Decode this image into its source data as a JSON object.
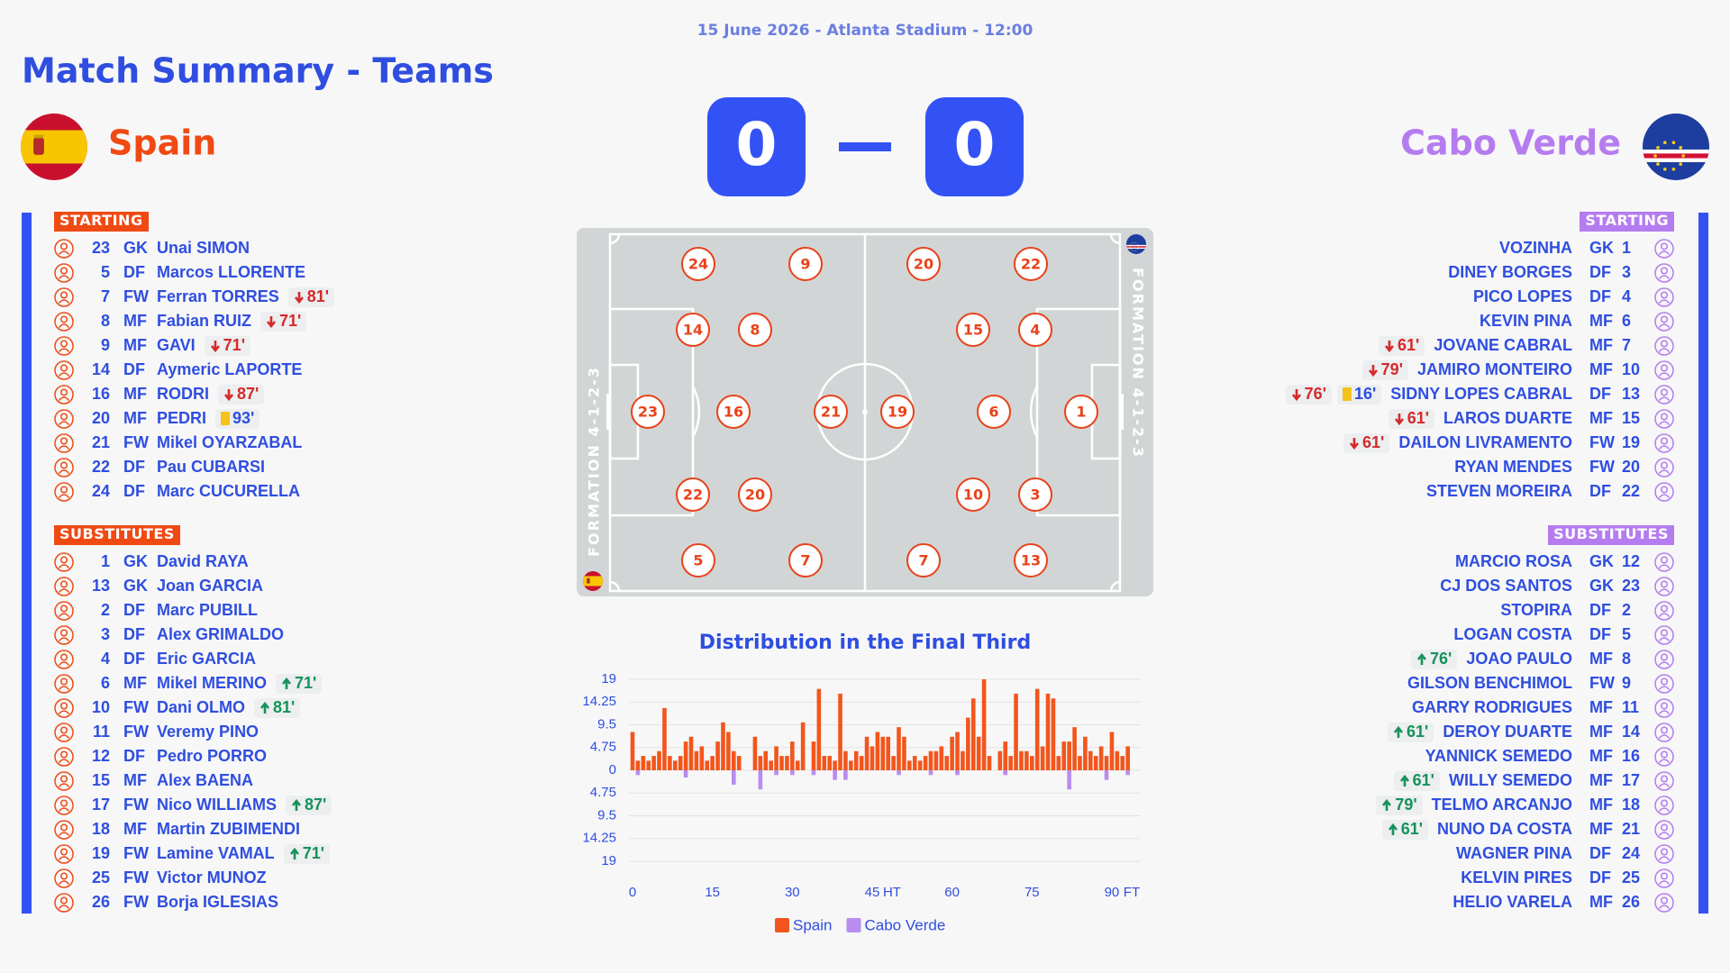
{
  "header": {
    "date_venue": "15 June 2026 - Atlanta Stadium - 12:00",
    "title": "Match Summary - Teams"
  },
  "teams": [
    {
      "name": "Spain",
      "score": 0,
      "color": "#f04a14",
      "starting_label": "STARTING",
      "substitutes_label": "SUBSTITUTES",
      "formation_label": "FORMATION 4-1-2-3",
      "pitch_numbers": [
        23,
        14,
        22,
        8,
        16,
        20,
        24,
        9,
        5,
        7,
        21
      ],
      "starting": [
        {
          "number": 23,
          "position": "GK",
          "name": "Unai SIMON"
        },
        {
          "number": 5,
          "position": "DF",
          "name": "Marcos LLORENTE"
        },
        {
          "number": 7,
          "position": "FW",
          "name": "Ferran TORRES",
          "events": [
            {
              "type": "sub_off",
              "minute": "81'"
            }
          ]
        },
        {
          "number": 8,
          "position": "MF",
          "name": "Fabian RUIZ",
          "events": [
            {
              "type": "sub_off",
              "minute": "71'"
            }
          ]
        },
        {
          "number": 9,
          "position": "MF",
          "name": "GAVI",
          "events": [
            {
              "type": "sub_off",
              "minute": "71'"
            }
          ]
        },
        {
          "number": 14,
          "position": "DF",
          "name": "Aymeric LAPORTE"
        },
        {
          "number": 16,
          "position": "MF",
          "name": "RODRI",
          "events": [
            {
              "type": "sub_off",
              "minute": "87'"
            }
          ]
        },
        {
          "number": 20,
          "position": "MF",
          "name": "PEDRI",
          "events": [
            {
              "type": "yellow_card",
              "minute": "93'"
            }
          ]
        },
        {
          "number": 21,
          "position": "FW",
          "name": "Mikel OYARZABAL"
        },
        {
          "number": 22,
          "position": "DF",
          "name": "Pau CUBARSI"
        },
        {
          "number": 24,
          "position": "DF",
          "name": "Marc CUCURELLA"
        }
      ],
      "substitutes": [
        {
          "number": 1,
          "position": "GK",
          "name": "David RAYA"
        },
        {
          "number": 13,
          "position": "GK",
          "name": "Joan GARCIA"
        },
        {
          "number": 2,
          "position": "DF",
          "name": "Marc PUBILL"
        },
        {
          "number": 3,
          "position": "DF",
          "name": "Alex GRIMALDO"
        },
        {
          "number": 4,
          "position": "DF",
          "name": "Eric GARCIA"
        },
        {
          "number": 6,
          "position": "MF",
          "name": "Mikel MERINO",
          "events": [
            {
              "type": "sub_on",
              "minute": "71'"
            }
          ]
        },
        {
          "number": 10,
          "position": "FW",
          "name": "Dani OLMO",
          "events": [
            {
              "type": "sub_on",
              "minute": "81'"
            }
          ]
        },
        {
          "number": 11,
          "position": "FW",
          "name": "Veremy PINO"
        },
        {
          "number": 12,
          "position": "DF",
          "name": "Pedro PORRO"
        },
        {
          "number": 15,
          "position": "MF",
          "name": "Alex BAENA"
        },
        {
          "number": 17,
          "position": "FW",
          "name": "Nico WILLIAMS",
          "events": [
            {
              "type": "sub_on",
              "minute": "87'"
            }
          ]
        },
        {
          "number": 18,
          "position": "MF",
          "name": "Martin ZUBIMENDI"
        },
        {
          "number": 19,
          "position": "FW",
          "name": "Lamine VAMAL",
          "events": [
            {
              "type": "sub_on",
              "minute": "71'"
            }
          ]
        },
        {
          "number": 25,
          "position": "FW",
          "name": "Victor MUNOZ"
        },
        {
          "number": 26,
          "position": "FW",
          "name": "Borja IGLESIAS"
        }
      ]
    },
    {
      "name": "Cabo Verde",
      "score": 0,
      "color": "#b57cf0",
      "starting_label": "STARTING",
      "substitutes_label": "SUBSTITUTES",
      "formation_label": "FORMATION 4-1-2-3",
      "pitch_numbers": [
        1,
        4,
        3,
        15,
        6,
        10,
        20,
        22,
        7,
        13,
        19
      ],
      "starting": [
        {
          "number": 1,
          "position": "GK",
          "name": "VOZINHA"
        },
        {
          "number": 3,
          "position": "DF",
          "name": "DINEY BORGES"
        },
        {
          "number": 4,
          "position": "DF",
          "name": "PICO LOPES"
        },
        {
          "number": 6,
          "position": "MF",
          "name": "KEVIN PINA"
        },
        {
          "number": 7,
          "position": "MF",
          "name": "JOVANE CABRAL",
          "events": [
            {
              "type": "sub_off",
              "minute": "61'"
            }
          ]
        },
        {
          "number": 10,
          "position": "MF",
          "name": "JAMIRO MONTEIRO",
          "events": [
            {
              "type": "sub_off",
              "minute": "79'"
            }
          ]
        },
        {
          "number": 13,
          "position": "DF",
          "name": "SIDNY LOPES CABRAL",
          "events": [
            {
              "type": "sub_off",
              "minute": "76'"
            },
            {
              "type": "yellow_card",
              "minute": "16'"
            }
          ]
        },
        {
          "number": 15,
          "position": "MF",
          "name": "LAROS DUARTE",
          "events": [
            {
              "type": "sub_off",
              "minute": "61'"
            }
          ]
        },
        {
          "number": 19,
          "position": "FW",
          "name": "DAILON LIVRAMENTO",
          "events": [
            {
              "type": "sub_off",
              "minute": "61'"
            }
          ]
        },
        {
          "number": 20,
          "position": "FW",
          "name": "RYAN MENDES"
        },
        {
          "number": 22,
          "position": "DF",
          "name": "STEVEN MOREIRA"
        }
      ],
      "substitutes": [
        {
          "number": 12,
          "position": "GK",
          "name": "MARCIO ROSA"
        },
        {
          "number": 23,
          "position": "GK",
          "name": "CJ DOS SANTOS"
        },
        {
          "number": 2,
          "position": "DF",
          "name": "STOPIRA"
        },
        {
          "number": 5,
          "position": "DF",
          "name": "LOGAN COSTA"
        },
        {
          "number": 8,
          "position": "MF",
          "name": "JOAO PAULO",
          "events": [
            {
              "type": "sub_on",
              "minute": "76'"
            }
          ]
        },
        {
          "number": 9,
          "position": "FW",
          "name": "GILSON BENCHIMOL"
        },
        {
          "number": 11,
          "position": "MF",
          "name": "GARRY RODRIGUES"
        },
        {
          "number": 14,
          "position": "MF",
          "name": "DEROY DUARTE",
          "events": [
            {
              "type": "sub_on",
              "minute": "61'"
            }
          ]
        },
        {
          "number": 16,
          "position": "MF",
          "name": "YANNICK SEMEDO"
        },
        {
          "number": 17,
          "position": "MF",
          "name": "WILLY SEMEDO",
          "events": [
            {
              "type": "sub_on",
              "minute": "61'"
            }
          ]
        },
        {
          "number": 18,
          "position": "MF",
          "name": "TELMO ARCANJO",
          "events": [
            {
              "type": "sub_on",
              "minute": "79'"
            }
          ]
        },
        {
          "number": 21,
          "position": "MF",
          "name": "NUNO DA COSTA",
          "events": [
            {
              "type": "sub_on",
              "minute": "61'"
            }
          ]
        },
        {
          "number": 24,
          "position": "DF",
          "name": "WAGNER PINA"
        },
        {
          "number": 25,
          "position": "DF",
          "name": "KELVIN PIRES"
        },
        {
          "number": 26,
          "position": "MF",
          "name": "HELIO VARELA"
        }
      ]
    }
  ],
  "chart_data": {
    "type": "bar",
    "title": "Distribution in the Final Third",
    "x": [
      0,
      1,
      2,
      3,
      4,
      5,
      6,
      7,
      8,
      9,
      10,
      11,
      12,
      13,
      14,
      15,
      16,
      17,
      18,
      19,
      20,
      21,
      22,
      23,
      24,
      25,
      26,
      27,
      28,
      29,
      30,
      31,
      32,
      33,
      34,
      35,
      36,
      37,
      38,
      39,
      40,
      41,
      42,
      43,
      44,
      45,
      46,
      47,
      48,
      49,
      50,
      51,
      52,
      53,
      54,
      55,
      56,
      57,
      58,
      59,
      60,
      61,
      62,
      63,
      64,
      65,
      66,
      67,
      68,
      69,
      70,
      71,
      72,
      73,
      74,
      75,
      76,
      77,
      78,
      79,
      80,
      81,
      82,
      83,
      84,
      85,
      86,
      87,
      88,
      89,
      90,
      91,
      92,
      93
    ],
    "series": [
      {
        "name": "Spain",
        "color": "#f2561d",
        "values": [
          8,
          2,
          3,
          2,
          3,
          4,
          13,
          3,
          2,
          3,
          6,
          7,
          4,
          5,
          2,
          3,
          6,
          10,
          8,
          4,
          3,
          0,
          0,
          7,
          3,
          4,
          2,
          5,
          3,
          3,
          6,
          2,
          10,
          0,
          6,
          17,
          3,
          3,
          2,
          16,
          4,
          2,
          4,
          3,
          7,
          5,
          8,
          7,
          7,
          3,
          9,
          7,
          2,
          3,
          2,
          3,
          4,
          4,
          5,
          3,
          7,
          8,
          4,
          11,
          15,
          7,
          19,
          3,
          0,
          4,
          6,
          3,
          16,
          4,
          4,
          3,
          17,
          5,
          16,
          15,
          3,
          6,
          6,
          9,
          3,
          7,
          4,
          3,
          5,
          3,
          8,
          4,
          3,
          5
        ]
      },
      {
        "name": "Cabo Verde",
        "color": "#b98cf0",
        "values": [
          0,
          -1,
          0,
          0,
          0,
          0,
          0,
          0,
          0,
          0,
          -1.5,
          0,
          0,
          0,
          0,
          0,
          0,
          0,
          0,
          -3,
          0,
          0,
          0,
          0,
          -4,
          0,
          0,
          -1,
          0,
          0,
          -1,
          0,
          0,
          0,
          -1,
          0,
          0,
          0,
          -2,
          0,
          -2,
          0,
          0,
          0,
          0,
          0,
          0,
          0,
          0,
          0,
          -1,
          0,
          0,
          0,
          0,
          0,
          -1,
          0,
          0,
          0,
          0,
          -1,
          0,
          0,
          0,
          0,
          0,
          0,
          0,
          0,
          -1,
          0,
          0,
          0,
          0,
          0,
          0,
          0,
          0,
          0,
          0,
          0,
          -4,
          0,
          0,
          0,
          0,
          0,
          0,
          -2,
          0,
          0,
          0,
          -1
        ]
      }
    ],
    "xlim": [
      0,
      95
    ],
    "ylim": [
      -19,
      19
    ],
    "xticks": [
      0,
      15,
      30,
      45,
      60,
      75,
      90
    ],
    "x_markers": [
      {
        "value": 45,
        "label": "HT"
      },
      {
        "value": 90,
        "label": "FT"
      }
    ],
    "yticks": [
      {
        "value": -19,
        "label": "19"
      },
      {
        "value": -14.25,
        "label": "14.25"
      },
      {
        "value": -9.5,
        "label": "9.5"
      },
      {
        "value": -4.75,
        "label": "4.75"
      },
      0,
      4.75,
      9.5,
      14.25,
      19
    ],
    "grid": true,
    "legend": "bottom"
  }
}
